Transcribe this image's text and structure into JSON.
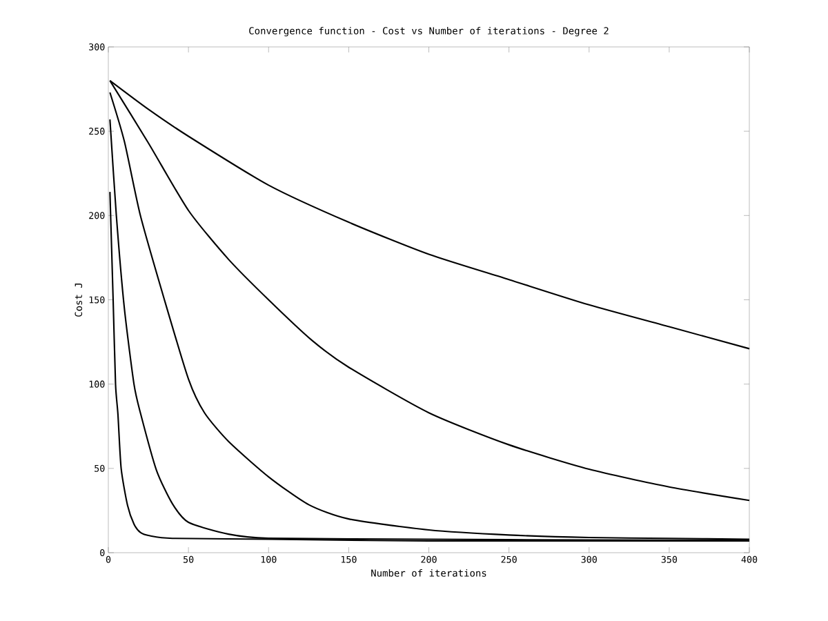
{
  "chart_data": {
    "type": "line",
    "title": "Convergence function - Cost vs Number of iterations - Degree 2",
    "xlabel": "Number of iterations",
    "ylabel": "Cost J",
    "xlim": [
      0,
      400
    ],
    "ylim": [
      0,
      300
    ],
    "xticks": [
      0,
      50,
      100,
      150,
      200,
      250,
      300,
      350,
      400
    ],
    "yticks": [
      0,
      50,
      100,
      150,
      200,
      250,
      300
    ],
    "series": [
      {
        "color": "#000000",
        "x": [
          1,
          25,
          50,
          100,
          150,
          200,
          250,
          300,
          350,
          400
        ],
        "values": [
          280,
          263,
          247,
          218,
          196,
          177,
          162,
          147,
          134,
          121
        ]
      },
      {
        "color": "#000000",
        "x": [
          1,
          25,
          50,
          75,
          100,
          127,
          150,
          200,
          250,
          300,
          350,
          400
        ],
        "values": [
          280,
          243,
          203,
          174,
          150,
          126,
          110,
          83,
          64,
          49.5,
          39,
          31
        ]
      },
      {
        "color": "#000000",
        "x": [
          1,
          10,
          20,
          35,
          50,
          60,
          75,
          100,
          125,
          150,
          200,
          250,
          300,
          350,
          400
        ],
        "values": [
          273,
          244,
          200,
          150,
          103,
          83,
          66,
          45,
          28.5,
          20,
          13.5,
          10.5,
          9,
          8.5,
          8
        ]
      },
      {
        "color": "#000000",
        "x": [
          1,
          5,
          10,
          16,
          20,
          30,
          40,
          50,
          75,
          100,
          200,
          300,
          400
        ],
        "values": [
          257,
          200,
          145,
          100,
          83,
          49,
          29,
          18,
          11,
          8.6,
          8,
          7.5,
          7.5
        ]
      },
      {
        "color": "#000000",
        "x": [
          1,
          3,
          4.5,
          6,
          8,
          12,
          16,
          20,
          26,
          40,
          100,
          200,
          400
        ],
        "values": [
          214,
          150,
          100,
          82,
          50,
          28,
          17,
          12,
          10,
          8.5,
          8,
          7,
          7
        ]
      }
    ]
  }
}
